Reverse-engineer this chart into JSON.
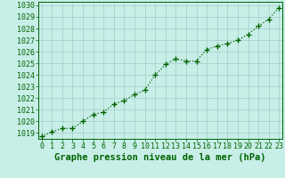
{
  "x": [
    0,
    1,
    2,
    3,
    4,
    5,
    6,
    7,
    8,
    9,
    10,
    11,
    12,
    13,
    14,
    15,
    16,
    17,
    18,
    19,
    20,
    21,
    22,
    23
  ],
  "y": [
    1018.7,
    1019.1,
    1019.4,
    1019.4,
    1020.0,
    1020.6,
    1020.8,
    1021.5,
    1021.8,
    1022.3,
    1022.7,
    1024.0,
    1024.9,
    1025.4,
    1025.2,
    1025.2,
    1026.2,
    1026.5,
    1026.7,
    1027.0,
    1027.5,
    1028.2,
    1028.8,
    1029.8
  ],
  "xlabel": "Graphe pression niveau de la mer (hPa)",
  "ylim_min": 1018.5,
  "ylim_max": 1030.3,
  "yticks": [
    1019,
    1020,
    1021,
    1022,
    1023,
    1024,
    1025,
    1026,
    1027,
    1028,
    1029,
    1030
  ],
  "line_color": "#006400",
  "marker_color": "#006400",
  "bg_color": "#c8eee8",
  "grid_color": "#a0cfc8",
  "xlabel_color": "#006400",
  "xlabel_fontsize": 7.5,
  "tick_fontsize": 6.0
}
